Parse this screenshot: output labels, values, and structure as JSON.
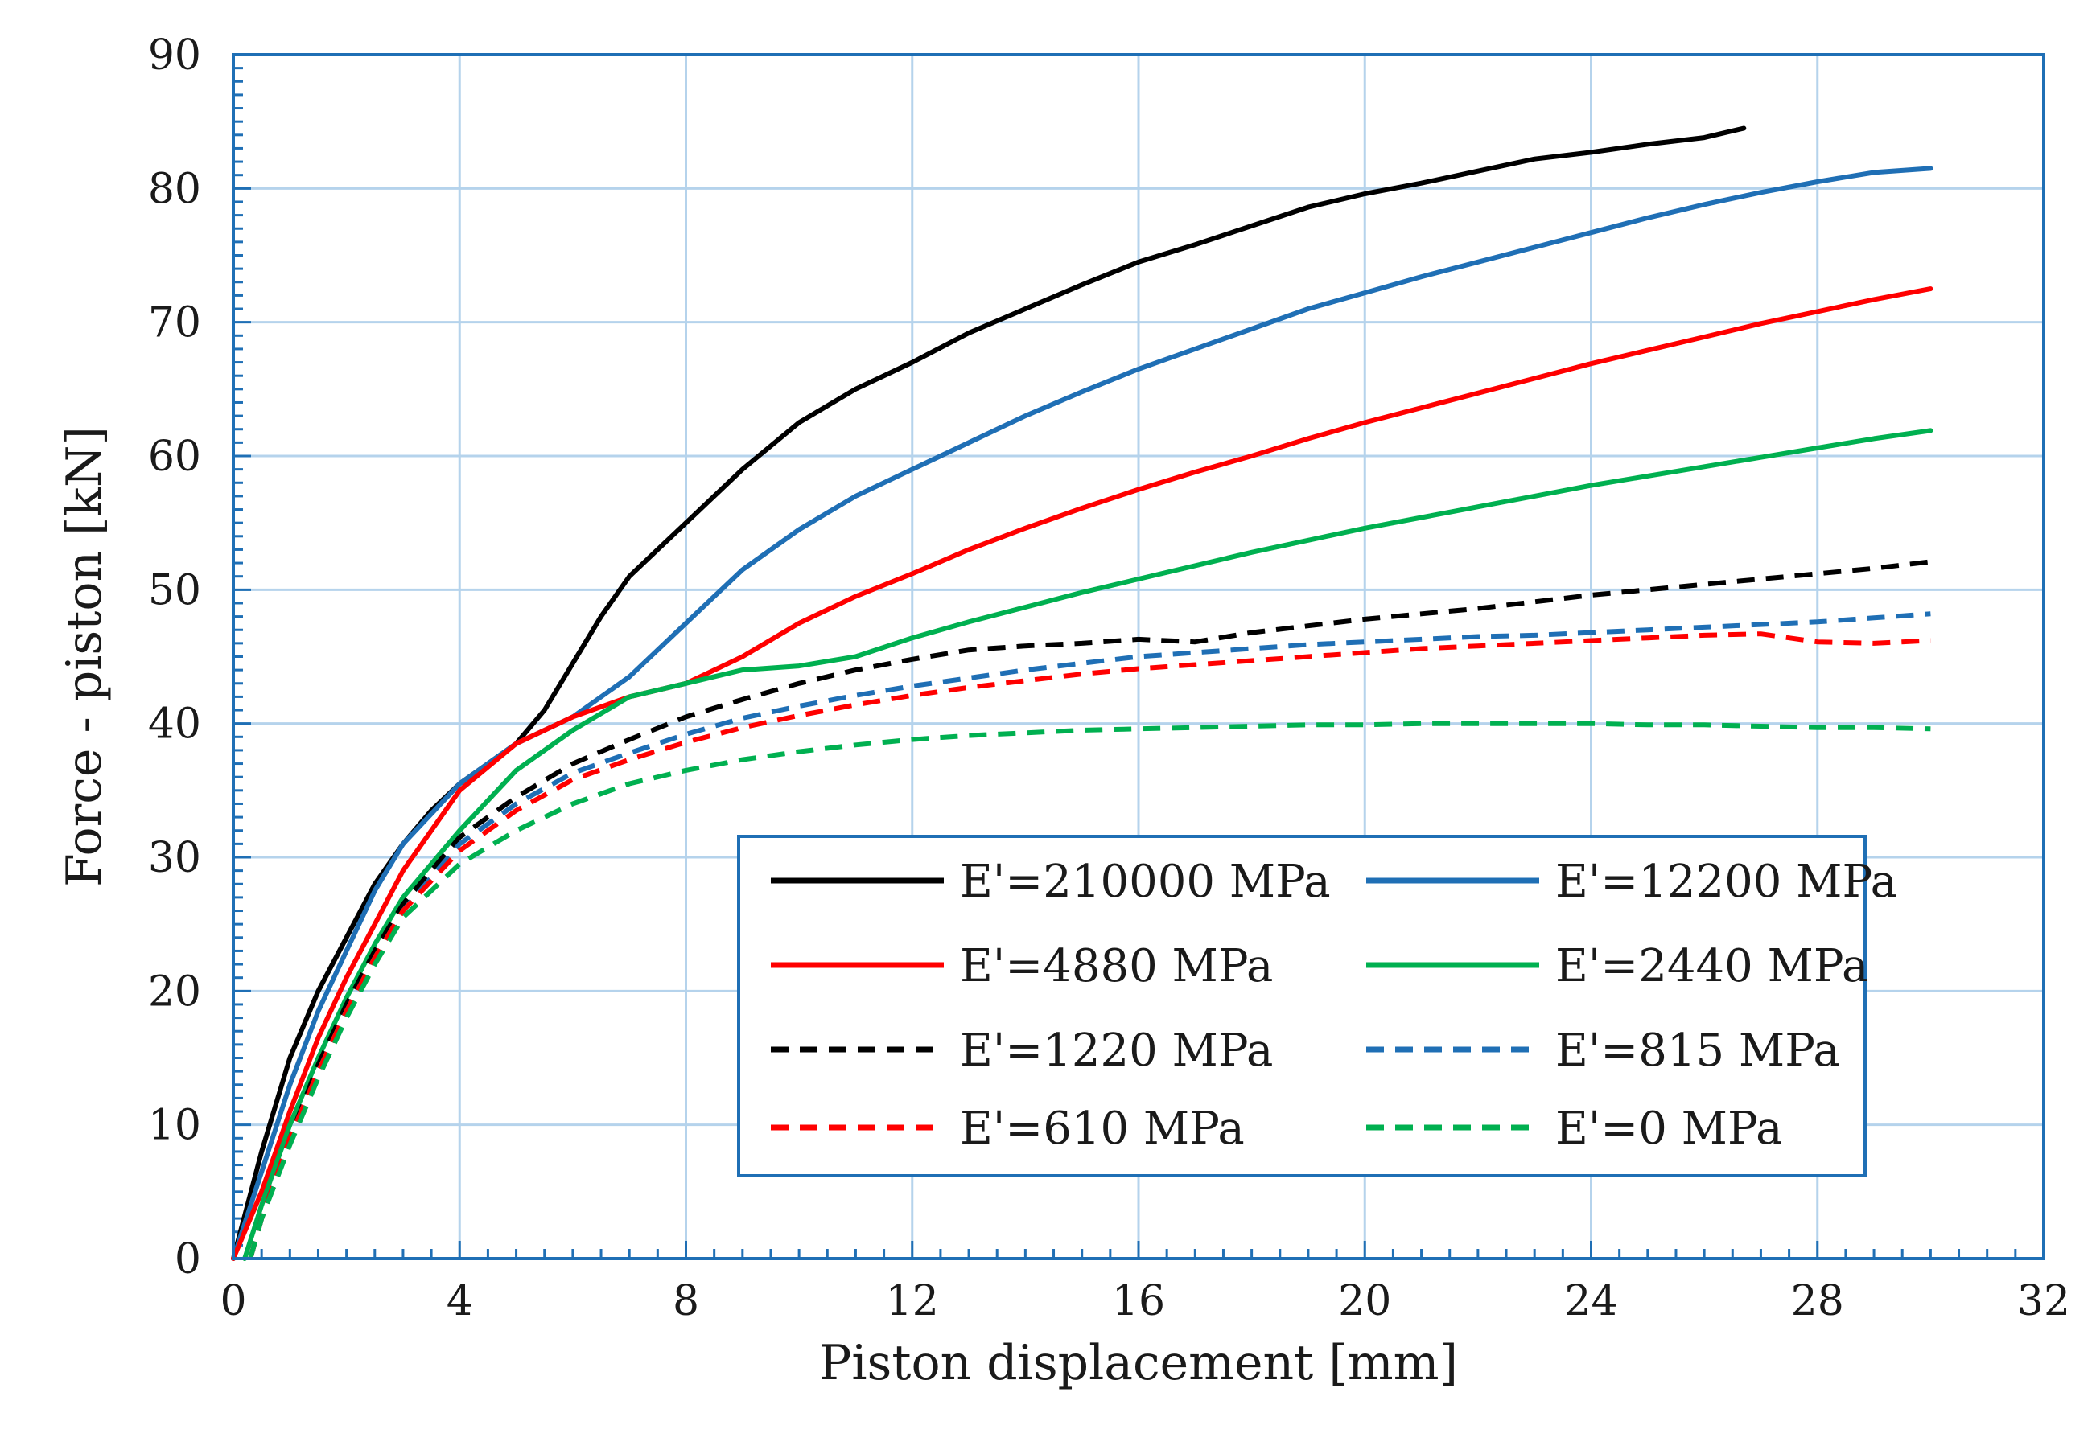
{
  "chart_data": {
    "type": "line",
    "title": "",
    "xlabel": "Piston displacement [mm]",
    "ylabel": "Force - piston [kN]",
    "xlim": [
      0,
      32
    ],
    "ylim": [
      0,
      90
    ],
    "xticks": [
      0,
      4,
      8,
      12,
      16,
      20,
      24,
      28,
      32
    ],
    "yticks": [
      0,
      10,
      20,
      30,
      40,
      50,
      60,
      70,
      80,
      90
    ],
    "x_minor_step": 0.5,
    "y_minor_step": 1,
    "grid": true,
    "legend_position": "bottom-right",
    "colors": {
      "axis": "#1f6fb5",
      "grid": "#b5d3ec",
      "black": "#000000",
      "blue": "#1f6fb5",
      "red": "#ff0000",
      "green": "#00b050"
    },
    "series": [
      {
        "name": "E'=210000 MPa",
        "color": "#000000",
        "dash": false,
        "x": [
          0,
          0.5,
          1,
          1.5,
          2,
          2.5,
          3,
          3.5,
          4,
          4.5,
          5,
          5.5,
          6,
          6.5,
          7,
          7.5,
          8,
          9,
          10,
          11,
          12,
          13,
          14,
          15,
          16,
          17,
          18,
          19,
          20,
          21,
          22,
          23,
          24,
          25,
          26,
          26.7
        ],
        "y": [
          0,
          8,
          15,
          20,
          24,
          28,
          31,
          33.5,
          35.5,
          37,
          38.5,
          41,
          44.5,
          48,
          51,
          53,
          55,
          59,
          62.5,
          65,
          67,
          69.2,
          71,
          72.8,
          74.5,
          75.8,
          77.2,
          78.6,
          79.6,
          80.4,
          81.3,
          82.2,
          82.7,
          83.3,
          83.8,
          84.5
        ]
      },
      {
        "name": "E'=12200 MPa",
        "color": "#1f6fb5",
        "dash": false,
        "x": [
          0,
          0.5,
          1,
          1.5,
          2,
          2.5,
          3,
          4,
          5,
          6,
          7,
          8,
          9,
          10,
          11,
          12,
          13,
          14,
          15,
          16,
          17,
          18,
          19,
          20,
          21,
          22,
          23,
          24,
          25,
          26,
          27,
          28,
          29,
          30
        ],
        "y": [
          0,
          6.5,
          13,
          18.5,
          23,
          27.5,
          31,
          35.5,
          38.5,
          40.5,
          43.5,
          47.5,
          51.5,
          54.5,
          57,
          59,
          61,
          63,
          64.8,
          66.5,
          68,
          69.5,
          71,
          72.2,
          73.4,
          74.5,
          75.6,
          76.7,
          77.8,
          78.8,
          79.7,
          80.5,
          81.2,
          81.5
        ]
      },
      {
        "name": "E'=4880 MPa",
        "color": "#ff0000",
        "dash": false,
        "x": [
          0,
          0.5,
          1,
          1.5,
          2,
          2.5,
          3,
          4,
          5,
          6,
          7,
          8,
          9,
          10,
          11,
          12,
          13,
          14,
          15,
          16,
          17,
          18,
          19,
          20,
          21,
          22,
          23,
          24,
          25,
          26,
          27,
          28,
          29,
          30
        ],
        "y": [
          0,
          5,
          11,
          16.5,
          21,
          25,
          29,
          35,
          38.5,
          40.5,
          42,
          43,
          45,
          47.5,
          49.5,
          51.2,
          53,
          54.6,
          56.1,
          57.5,
          58.8,
          60,
          61.3,
          62.5,
          63.6,
          64.7,
          65.8,
          66.9,
          67.9,
          68.9,
          69.9,
          70.8,
          71.7,
          72.5
        ]
      },
      {
        "name": "E'=2440 MPa",
        "color": "#00b050",
        "dash": false,
        "x": [
          0.2,
          0.5,
          1,
          1.5,
          2,
          2.5,
          3,
          4,
          5,
          6,
          7,
          8,
          9,
          10,
          11,
          12,
          13,
          14,
          15,
          16,
          17,
          18,
          19,
          20,
          21,
          22,
          23,
          24,
          25,
          26,
          27,
          28,
          29,
          30
        ],
        "y": [
          0,
          4,
          10,
          15,
          19.5,
          23.5,
          27,
          32,
          36.5,
          39.5,
          42,
          43,
          44,
          44.3,
          45,
          46.4,
          47.6,
          48.7,
          49.8,
          50.8,
          51.8,
          52.8,
          53.7,
          54.6,
          55.4,
          56.2,
          57,
          57.8,
          58.5,
          59.2,
          59.9,
          60.6,
          61.3,
          61.9
        ]
      },
      {
        "name": "E'=1220 MPa",
        "color": "#000000",
        "dash": true,
        "x": [
          0.3,
          0.5,
          1,
          1.5,
          2,
          2.5,
          3,
          4,
          5,
          6,
          7,
          8,
          9,
          10,
          11,
          12,
          13,
          14,
          15,
          16,
          17,
          18,
          19,
          20,
          21,
          22,
          23,
          24,
          25,
          26,
          27,
          28,
          29,
          30
        ],
        "y": [
          0,
          3,
          9,
          14.5,
          19,
          23,
          26.5,
          31.5,
          34.5,
          37,
          38.8,
          40.5,
          41.8,
          43,
          44,
          44.8,
          45.5,
          45.8,
          46,
          46.3,
          46.1,
          46.8,
          47.3,
          47.8,
          48.2,
          48.6,
          49.1,
          49.6,
          50,
          50.4,
          50.8,
          51.2,
          51.6,
          52.1
        ]
      },
      {
        "name": "E'=815 MPa",
        "color": "#1f6fb5",
        "dash": true,
        "x": [
          0.3,
          0.5,
          1,
          1.5,
          2,
          2.5,
          3,
          4,
          5,
          6,
          7,
          8,
          9,
          10,
          11,
          12,
          13,
          14,
          15,
          16,
          17,
          18,
          19,
          20,
          21,
          22,
          23,
          24,
          25,
          26,
          27,
          28,
          29,
          30
        ],
        "y": [
          0,
          3,
          9,
          14,
          18.5,
          22.5,
          26,
          31,
          34,
          36.3,
          37.8,
          39.2,
          40.4,
          41.3,
          42.1,
          42.8,
          43.4,
          44,
          44.5,
          45,
          45.3,
          45.6,
          45.9,
          46.1,
          46.3,
          46.5,
          46.6,
          46.8,
          47,
          47.2,
          47.4,
          47.6,
          47.9,
          48.2
        ]
      },
      {
        "name": "E'=610 MPa",
        "color": "#ff0000",
        "dash": true,
        "x": [
          0.3,
          0.5,
          1,
          1.5,
          2,
          2.5,
          3,
          4,
          5,
          6,
          7,
          8,
          9,
          10,
          11,
          12,
          13,
          14,
          15,
          16,
          17,
          18,
          19,
          20,
          21,
          22,
          23,
          24,
          25,
          26,
          27,
          27.5,
          28,
          29,
          30
        ],
        "y": [
          0,
          3,
          9,
          14,
          18.5,
          22.5,
          26,
          30.5,
          33.5,
          35.8,
          37.3,
          38.6,
          39.7,
          40.6,
          41.4,
          42.1,
          42.7,
          43.2,
          43.7,
          44.1,
          44.4,
          44.7,
          45,
          45.3,
          45.6,
          45.8,
          46,
          46.2,
          46.4,
          46.6,
          46.7,
          46.4,
          46.1,
          46,
          46.2
        ]
      },
      {
        "name": "E'=0 MPa",
        "color": "#00b050",
        "dash": true,
        "x": [
          0.3,
          0.5,
          1,
          1.5,
          2,
          2.5,
          3,
          4,
          5,
          6,
          7,
          8,
          9,
          10,
          11,
          12,
          13,
          14,
          15,
          16,
          17,
          18,
          19,
          20,
          21,
          22,
          23,
          24,
          25,
          26,
          27,
          28,
          29,
          30
        ],
        "y": [
          0,
          3,
          8.5,
          13.5,
          18,
          22,
          25.5,
          29.5,
          32,
          34,
          35.5,
          36.5,
          37.3,
          37.9,
          38.4,
          38.8,
          39.1,
          39.3,
          39.5,
          39.6,
          39.7,
          39.8,
          39.9,
          39.9,
          40,
          40,
          40,
          40,
          39.9,
          39.9,
          39.8,
          39.7,
          39.7,
          39.6
        ]
      }
    ]
  }
}
